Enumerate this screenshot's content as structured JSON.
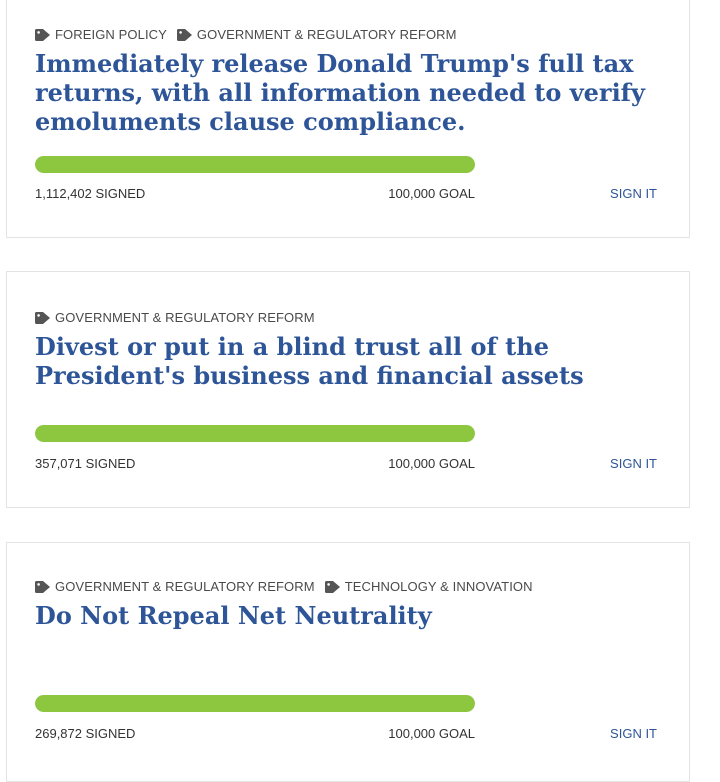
{
  "colors": {
    "title": "#2d5597",
    "progress_fill": "#8dc63f",
    "link": "#2d5597",
    "tag_icon": "#555555"
  },
  "petitions": [
    {
      "tags": [
        {
          "label": "FOREIGN POLICY",
          "icon": "tag-icon"
        },
        {
          "label": "GOVERNMENT & REGULATORY REFORM",
          "icon": "tag-icon"
        }
      ],
      "title": "Immediately release Donald Trump's full tax returns, with all information needed to verify emoluments clause compliance.",
      "signed": "1,112,402 SIGNED",
      "goal": "100,000 GOAL",
      "progress": 1.0,
      "action": "SIGN IT"
    },
    {
      "tags": [
        {
          "label": "GOVERNMENT & REGULATORY REFORM",
          "icon": "tag-icon"
        }
      ],
      "title": "Divest or put in a blind trust all of the President's business and financial assets",
      "signed": "357,071 SIGNED",
      "goal": "100,000 GOAL",
      "progress": 1.0,
      "action": "SIGN IT"
    },
    {
      "tags": [
        {
          "label": "GOVERNMENT & REGULATORY REFORM",
          "icon": "tag-icon"
        },
        {
          "label": "TECHNOLOGY & INNOVATION",
          "icon": "tag-icon"
        }
      ],
      "title": "Do Not Repeal Net Neutrality",
      "signed": "269,872 SIGNED",
      "goal": "100,000 GOAL",
      "progress": 1.0,
      "action": "SIGN IT"
    }
  ]
}
